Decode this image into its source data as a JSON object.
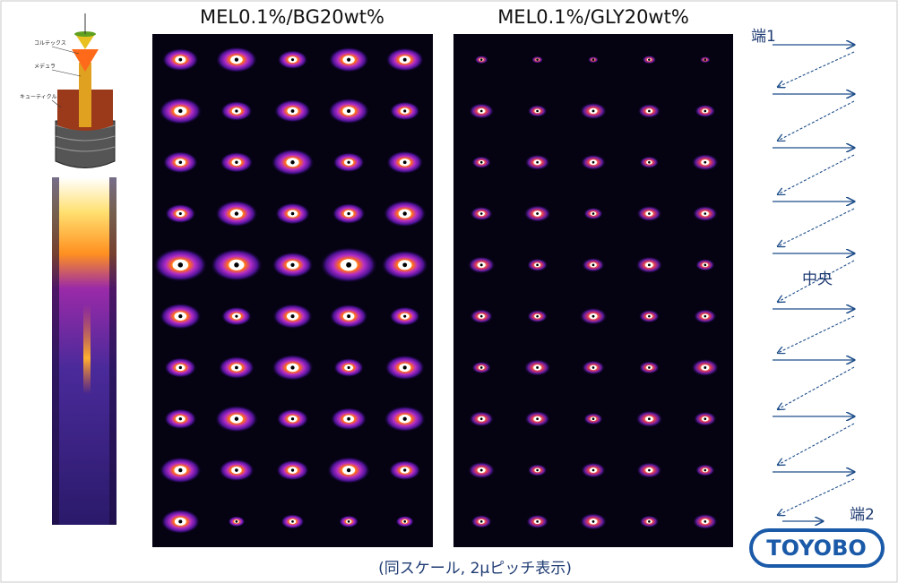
{
  "panels": [
    {
      "title": "MEL0.1%/BG20wt%"
    },
    {
      "title": "MEL0.1%/GLY20wt%"
    }
  ],
  "hair_diagram": {
    "labels": [
      "コルテックス",
      "メデュラ",
      "キューティクル"
    ]
  },
  "scan_path": {
    "start": "端1",
    "middle": "中央",
    "end": "端2"
  },
  "caption": "(同スケール, 2μピッチ表示)",
  "logo": "TOYOBO"
}
